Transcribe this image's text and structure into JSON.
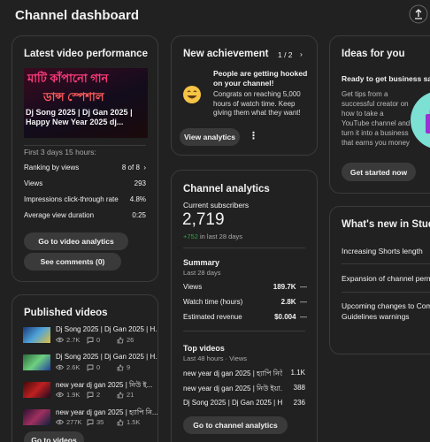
{
  "header": {
    "title": "Channel dashboard"
  },
  "latest": {
    "title": "Latest video performance",
    "thumbnail_lines": [
      "মাটি কাঁপানো গান",
      "ডান্স স্পেশাল"
    ],
    "video_title": "Dj Song 2025 | Dj Gan 2025 | Happy New Year 2025 dj...",
    "period": "First 3 days 15 hours:",
    "stats": [
      {
        "label": "Ranking by views",
        "value": "8 of 8"
      },
      {
        "label": "Views",
        "value": "293"
      },
      {
        "label": "Impressions click-through rate",
        "value": "4.8%"
      },
      {
        "label": "Average view duration",
        "value": "0:25"
      }
    ],
    "buttons": [
      "Go to video analytics",
      "See comments (0)"
    ]
  },
  "published": {
    "title": "Published videos",
    "videos": [
      {
        "title": "Dj Song 2025 | Dj Gan 2025 | H...",
        "views": "2.7K",
        "comments": "0",
        "likes": "26"
      },
      {
        "title": "Dj Song 2025 | Dj Gan 2025 | H...",
        "views": "2.6K",
        "comments": "0",
        "likes": "9"
      },
      {
        "title": "new year dj gan 2025 | নিউ ই...",
        "views": "1.9K",
        "comments": "2",
        "likes": "21"
      },
      {
        "title": "new year dj gan 2025 | হ্যাপি নি...",
        "views": "277K",
        "comments": "35",
        "likes": "1.5K"
      }
    ],
    "button": "Go to videos"
  },
  "achievement": {
    "title": "New achievement",
    "pager": "1 / 2",
    "headline": "People are getting hooked on your channel!",
    "body": "Congrats on reaching 5,000 hours of watch time. Keep giving them what they want!",
    "button": "View analytics"
  },
  "analytics": {
    "title": "Channel analytics",
    "subscribers_label": "Current subscribers",
    "subscribers": "2,719",
    "change": "+752",
    "change_period": "in last 28 days",
    "summary_title": "Summary",
    "summary_period": "Last 28 days",
    "summary": [
      {
        "label": "Views",
        "value": "189.7K",
        "trend": "—"
      },
      {
        "label": "Watch time (hours)",
        "value": "2.8K",
        "trend": "—"
      },
      {
        "label": "Estimated revenue",
        "value": "$0.004",
        "trend": "—"
      }
    ],
    "top_title": "Top videos",
    "top_period": "Last 48 hours · Views",
    "top": [
      {
        "title": "new year dj gan 2025 | হ্যাপি নিউ ইয়া...",
        "views": "1.1K"
      },
      {
        "title": "new year dj gan 2025 | নিউ ইয়া...",
        "views": "388"
      },
      {
        "title": "Dj Song 2025 | Dj Gan 2025 | Happy ...",
        "views": "236"
      }
    ],
    "button": "Go to channel analytics"
  },
  "ideas": {
    "title": "Ideas for you",
    "headline": "Ready to get business savv",
    "body": "Get tips from a successful creator on how to take a YouTube channel and turn it into a business that earns you money",
    "button": "Get started now"
  },
  "whats_new": {
    "title": "What's new in Studio",
    "items": [
      "Increasing Shorts length",
      "Expansion of channel permissio",
      "Upcoming changes to Commu Guidelines warnings"
    ]
  }
}
